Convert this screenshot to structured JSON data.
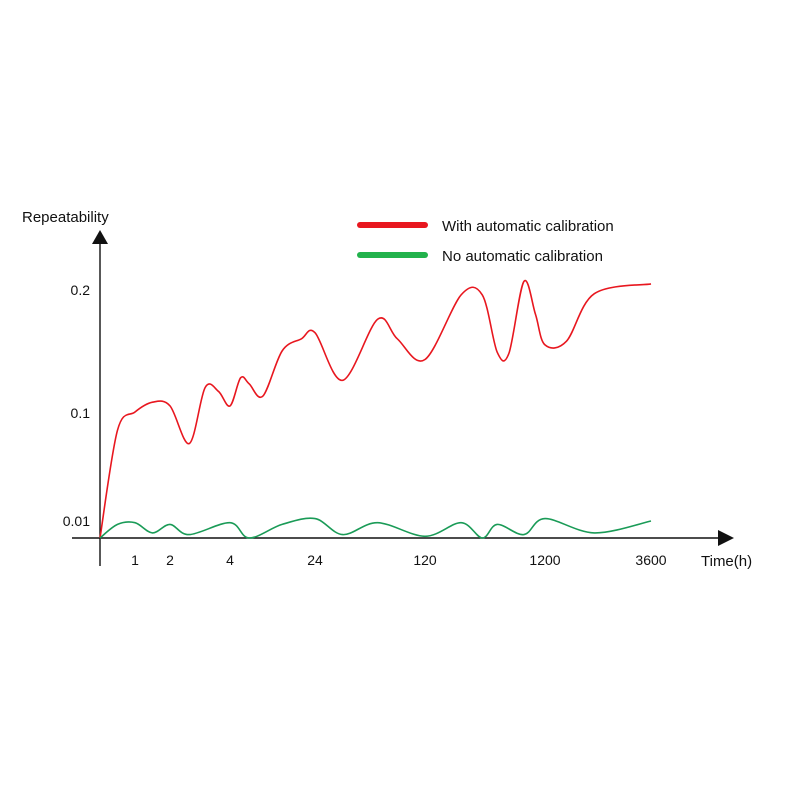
{
  "chart_data": {
    "type": "line",
    "title": "",
    "xlabel": "Time(h)",
    "ylabel": "Repeatability",
    "x_ticks": [
      "1",
      "2",
      "4",
      "24",
      "120",
      "1200",
      "3600"
    ],
    "y_ticks": [
      "0.01",
      "0.1",
      "0.2"
    ],
    "x_scale": "categorical-ordinal",
    "grid": false,
    "legend_position": "top-center",
    "series": [
      {
        "name": "With automatic calibration",
        "color": "#e8171f",
        "points": [
          [
            "0",
            0.0
          ],
          [
            "0.5",
            0.085
          ],
          [
            "1",
            0.1
          ],
          [
            "1.5",
            0.108
          ],
          [
            "2",
            0.105
          ],
          [
            "2.5",
            0.074
          ],
          [
            "3",
            0.12
          ],
          [
            "3.5",
            0.117
          ],
          [
            "4",
            0.105
          ],
          [
            "5",
            0.128
          ],
          [
            "6",
            0.123
          ],
          [
            "8",
            0.113
          ],
          [
            "12",
            0.15
          ],
          [
            "18",
            0.16
          ],
          [
            "24",
            0.165
          ],
          [
            "36",
            0.126
          ],
          [
            "60",
            0.176
          ],
          [
            "80",
            0.16
          ],
          [
            "120",
            0.143
          ],
          [
            "240",
            0.196
          ],
          [
            "360",
            0.196
          ],
          [
            "480",
            0.149
          ],
          [
            "600",
            0.148
          ],
          [
            "800",
            0.207
          ],
          [
            "1000",
            0.18
          ],
          [
            "1200",
            0.155
          ],
          [
            "1500",
            0.158
          ],
          [
            "2000",
            0.197
          ],
          [
            "3600",
            0.205
          ]
        ]
      },
      {
        "name": "No automatic calibration",
        "color": "#1a9b57",
        "points": [
          [
            "0",
            0.0
          ],
          [
            "0.5",
            0.008
          ],
          [
            "1",
            0.009
          ],
          [
            "1.5",
            0.003
          ],
          [
            "2",
            0.008
          ],
          [
            "2.5",
            0.002
          ],
          [
            "4",
            0.009
          ],
          [
            "6",
            0.0
          ],
          [
            "12",
            0.008
          ],
          [
            "24",
            0.012
          ],
          [
            "36",
            0.002
          ],
          [
            "60",
            0.009
          ],
          [
            "120",
            0.001
          ],
          [
            "240",
            0.009
          ],
          [
            "360",
            0.0
          ],
          [
            "480",
            0.008
          ],
          [
            "800",
            0.002
          ],
          [
            "1200",
            0.012
          ],
          [
            "2000",
            0.003
          ],
          [
            "3600",
            0.01
          ]
        ]
      }
    ]
  }
}
